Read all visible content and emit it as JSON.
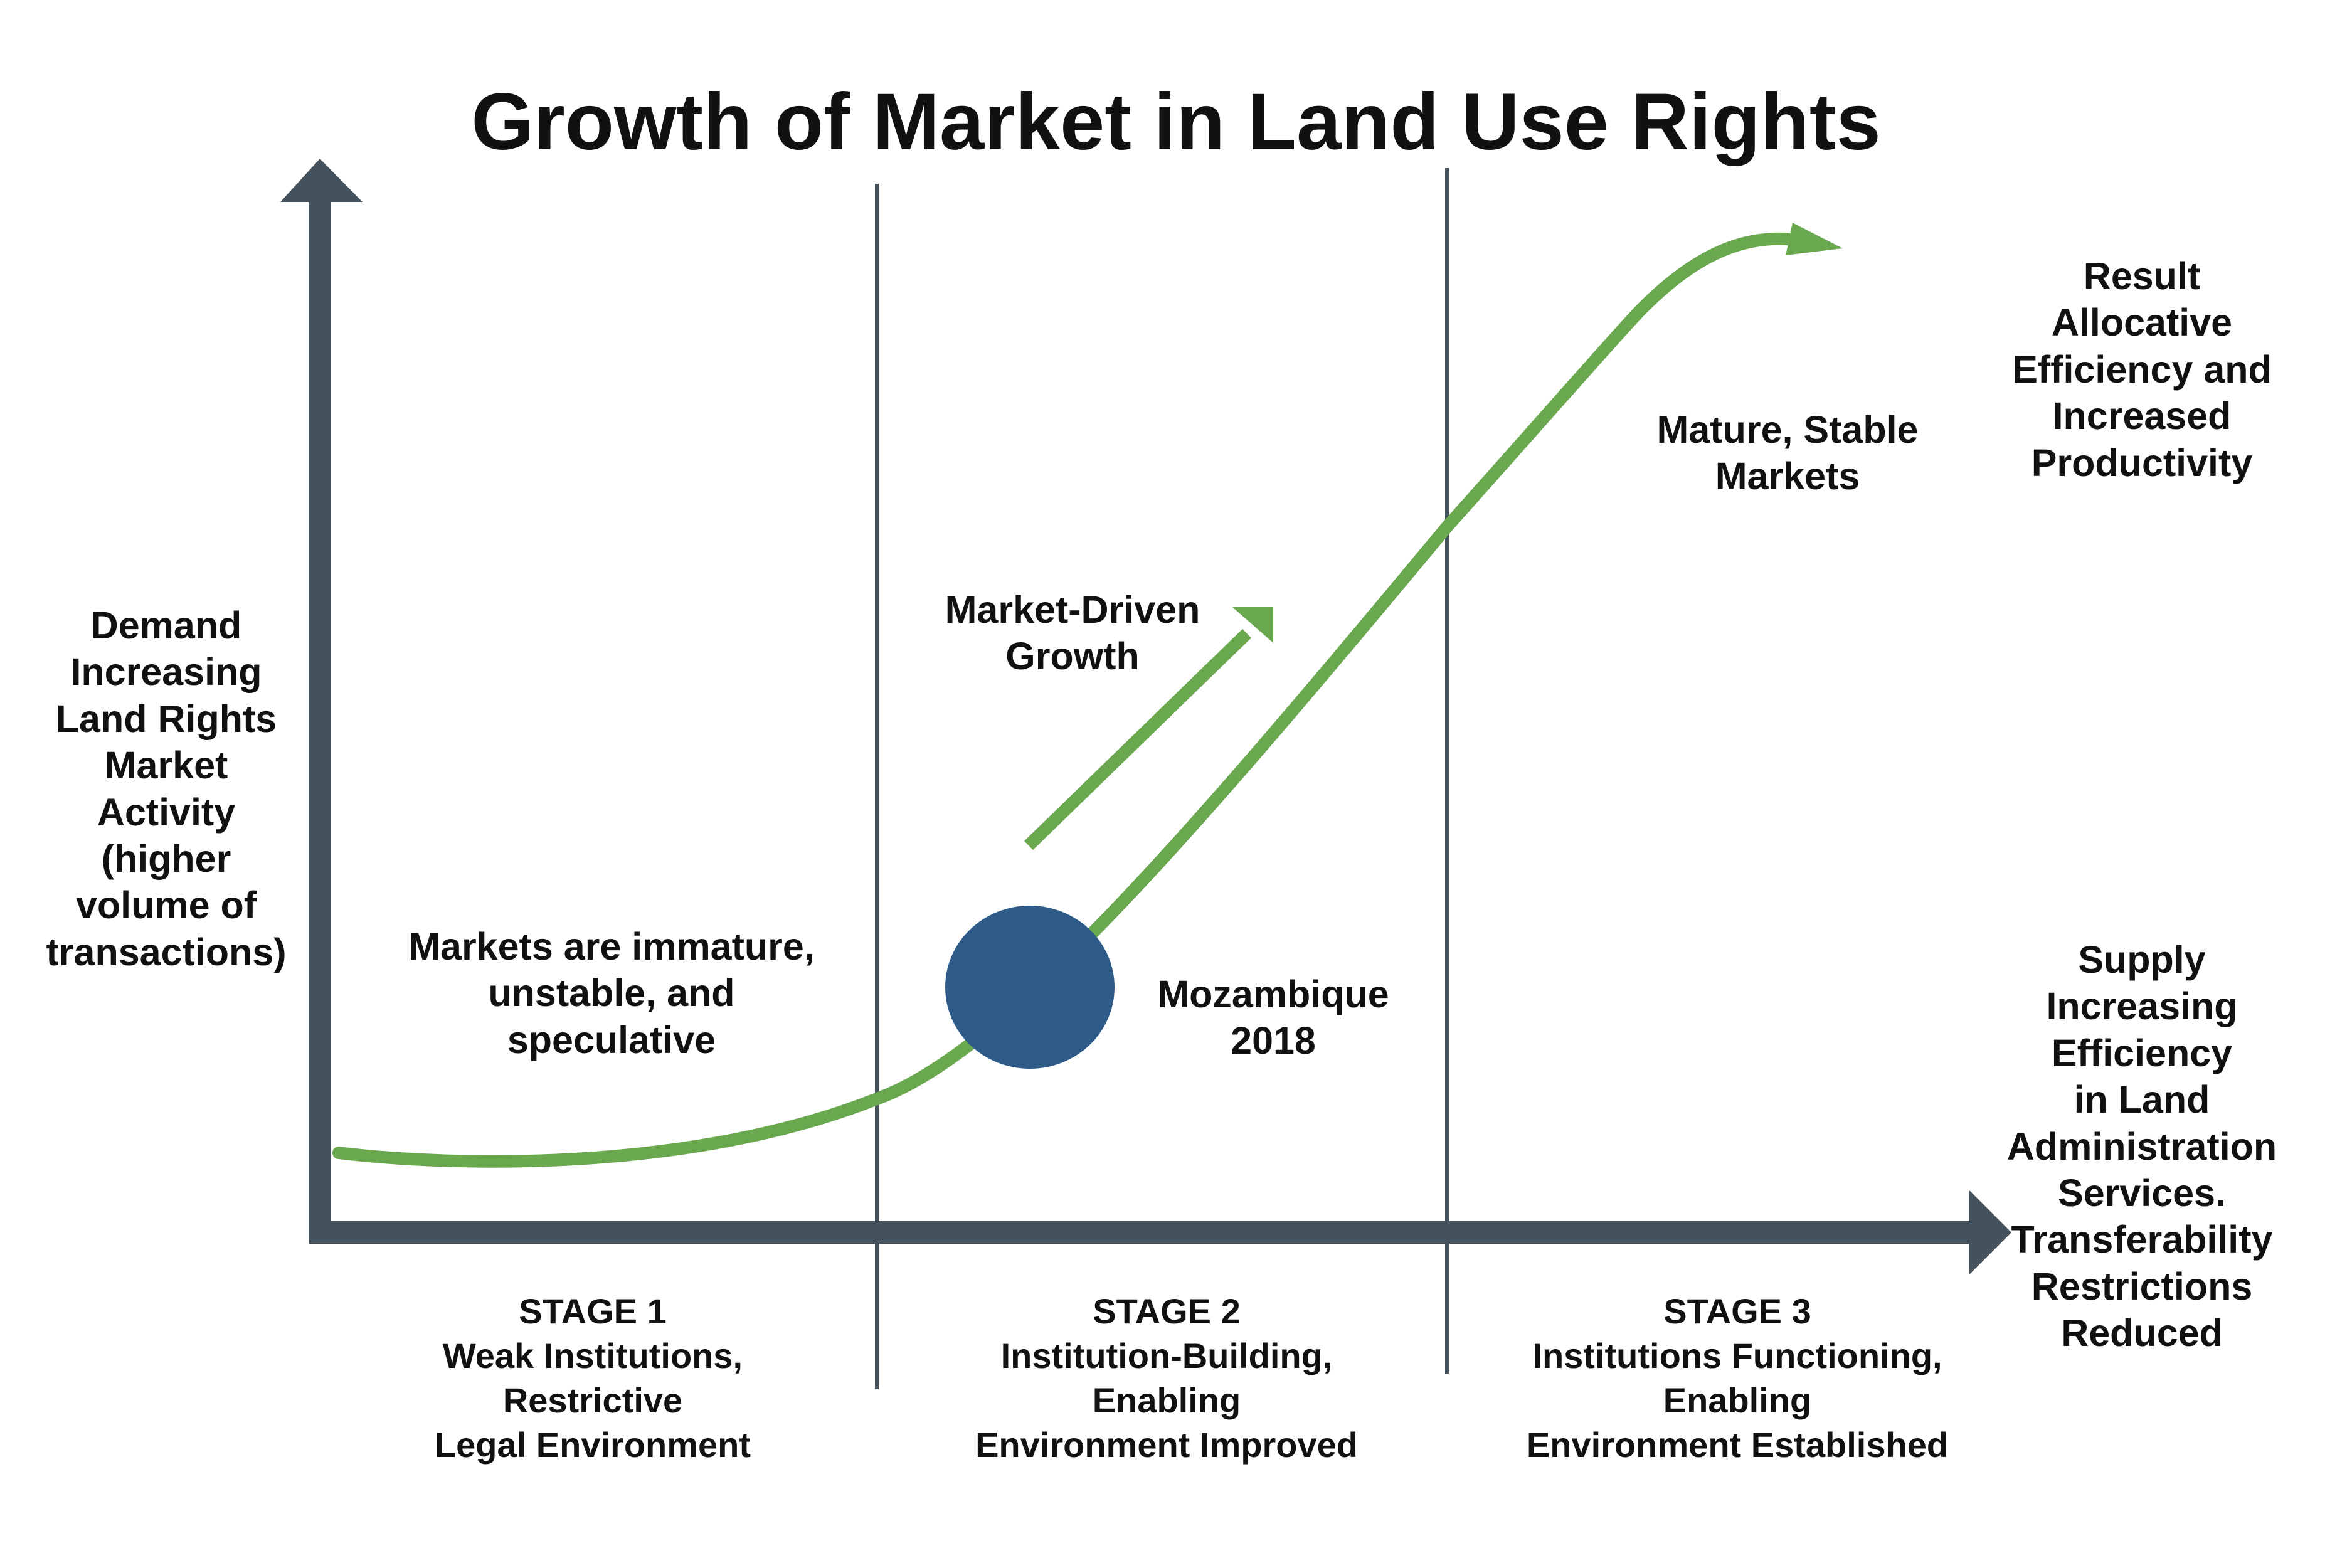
{
  "title": "Growth of Market in Land Use Rights",
  "y_axis_label": [
    "Demand",
    "Increasing",
    "Land Rights",
    "Market",
    "Activity",
    "(higher",
    "volume of",
    "transactions)"
  ],
  "x_axis_label": [
    "Supply",
    "Increasing",
    "Efficiency",
    "in Land",
    "Administration",
    "Services.",
    "Transferability",
    "Restrictions",
    "Reduced"
  ],
  "result_label": [
    "Result",
    "Allocative",
    "Efficiency and",
    "Increased",
    "Productivity"
  ],
  "annotations": {
    "stage1_note": [
      "Markets are immature,",
      "unstable, and",
      "speculative"
    ],
    "market_driven": [
      "Market-Driven",
      "Growth"
    ],
    "mature": [
      "Mature, Stable",
      "Markets"
    ],
    "marker": [
      "Mozambique",
      "2018"
    ]
  },
  "stages": [
    {
      "heading": "STAGE 1",
      "lines": [
        "Weak Institutions,",
        "Restrictive",
        "Legal Environment"
      ]
    },
    {
      "heading": "STAGE 2",
      "lines": [
        "Institution-Building,",
        "Enabling",
        "Environment Improved"
      ]
    },
    {
      "heading": "STAGE 3",
      "lines": [
        "Institutions Functioning,",
        "Enabling",
        "Environment Established"
      ]
    }
  ],
  "colors": {
    "axis": "#44525e",
    "curve": "#6aa84f",
    "marker": "#2e5a87",
    "text": "#111111"
  }
}
